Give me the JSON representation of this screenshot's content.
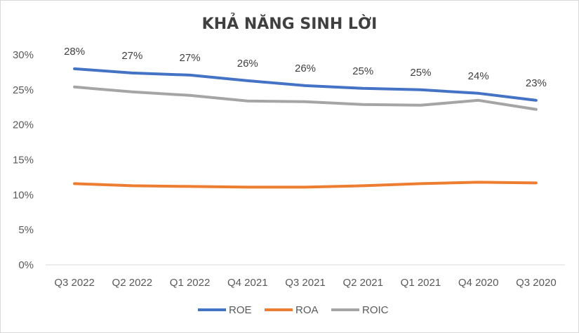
{
  "chart_data": {
    "type": "line",
    "title": "KHẢ NĂNG SINH LỜI",
    "categories": [
      "Q3 2022",
      "Q2 2022",
      "Q1 2022",
      "Q4 2021",
      "Q3 2021",
      "Q2 2021",
      "Q1 2021",
      "Q4 2020",
      "Q3 2020"
    ],
    "series": [
      {
        "name": "ROE",
        "color": "#4472c4",
        "values": [
          28.0,
          27.4,
          27.1,
          26.3,
          25.6,
          25.2,
          25.0,
          24.5,
          23.5
        ],
        "labels": [
          "28%",
          "27%",
          "27%",
          "26%",
          "26%",
          "25%",
          "25%",
          "24%",
          "23%"
        ]
      },
      {
        "name": "ROA",
        "color": "#ed7d31",
        "values": [
          11.6,
          11.3,
          11.2,
          11.1,
          11.1,
          11.3,
          11.6,
          11.8,
          11.7
        ]
      },
      {
        "name": "ROIC",
        "color": "#a5a5a5",
        "values": [
          25.4,
          24.7,
          24.2,
          23.4,
          23.3,
          22.9,
          22.8,
          23.5,
          22.2
        ]
      }
    ],
    "y_ticks": [
      "0%",
      "5%",
      "10%",
      "15%",
      "20%",
      "25%",
      "30%"
    ],
    "ylim": [
      0,
      30
    ],
    "xlabel": "",
    "ylabel": "",
    "legend": "bottom-center",
    "grid": false
  }
}
